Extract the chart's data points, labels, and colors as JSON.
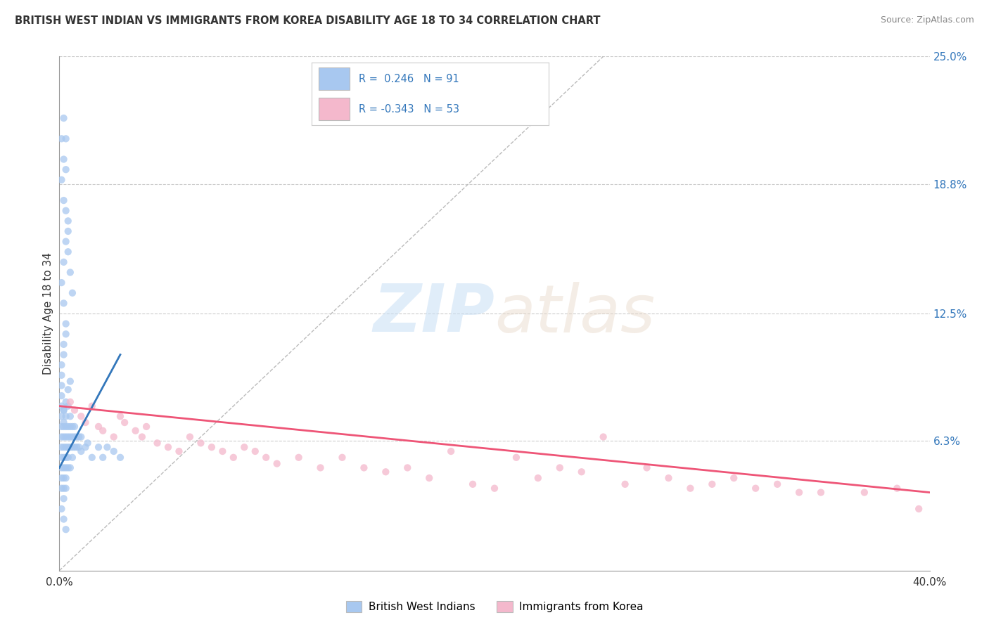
{
  "title": "BRITISH WEST INDIAN VS IMMIGRANTS FROM KOREA DISABILITY AGE 18 TO 34 CORRELATION CHART",
  "source": "Source: ZipAtlas.com",
  "ylabel": "Disability Age 18 to 34",
  "xlim": [
    0.0,
    0.4
  ],
  "ylim": [
    0.0,
    0.25
  ],
  "ytick_values": [
    0.063,
    0.125,
    0.188,
    0.25
  ],
  "ytick_labels": [
    "6.3%",
    "12.5%",
    "18.8%",
    "25.0%"
  ],
  "r_blue": 0.246,
  "n_blue": 91,
  "r_pink": -0.343,
  "n_pink": 53,
  "blue_color": "#a8c8f0",
  "pink_color": "#f4b8cc",
  "blue_line_color": "#3377bb",
  "pink_line_color": "#ee5577",
  "diagonal_color": "#bbbbbb",
  "watermark_zip": "ZIP",
  "watermark_atlas": "atlas",
  "legend_label_blue": "British West Indians",
  "legend_label_pink": "Immigrants from Korea",
  "blue_scatter_x": [
    0.001,
    0.001,
    0.001,
    0.001,
    0.001,
    0.001,
    0.001,
    0.001,
    0.001,
    0.001,
    0.002,
    0.002,
    0.002,
    0.002,
    0.002,
    0.002,
    0.002,
    0.002,
    0.002,
    0.002,
    0.003,
    0.003,
    0.003,
    0.003,
    0.003,
    0.003,
    0.003,
    0.003,
    0.004,
    0.004,
    0.004,
    0.004,
    0.004,
    0.004,
    0.005,
    0.005,
    0.005,
    0.005,
    0.005,
    0.006,
    0.006,
    0.006,
    0.006,
    0.007,
    0.007,
    0.007,
    0.008,
    0.008,
    0.009,
    0.009,
    0.01,
    0.01,
    0.012,
    0.013,
    0.015,
    0.018,
    0.02,
    0.022,
    0.025,
    0.028,
    0.001,
    0.002,
    0.003,
    0.001,
    0.002,
    0.003,
    0.001,
    0.002,
    0.001,
    0.002,
    0.003,
    0.004,
    0.005,
    0.006,
    0.004,
    0.003,
    0.002,
    0.001,
    0.003,
    0.002,
    0.004,
    0.005,
    0.003,
    0.002,
    0.001,
    0.004,
    0.003,
    0.002,
    0.001,
    0.003,
    0.002
  ],
  "blue_scatter_y": [
    0.055,
    0.06,
    0.065,
    0.07,
    0.075,
    0.08,
    0.085,
    0.05,
    0.045,
    0.04,
    0.055,
    0.06,
    0.065,
    0.07,
    0.05,
    0.045,
    0.04,
    0.035,
    0.072,
    0.078,
    0.055,
    0.06,
    0.065,
    0.07,
    0.05,
    0.045,
    0.04,
    0.075,
    0.06,
    0.065,
    0.055,
    0.07,
    0.05,
    0.08,
    0.06,
    0.065,
    0.07,
    0.05,
    0.075,
    0.06,
    0.065,
    0.055,
    0.07,
    0.06,
    0.065,
    0.07,
    0.065,
    0.06,
    0.065,
    0.06,
    0.065,
    0.058,
    0.06,
    0.062,
    0.055,
    0.06,
    0.055,
    0.06,
    0.058,
    0.055,
    0.1,
    0.11,
    0.12,
    0.095,
    0.105,
    0.115,
    0.09,
    0.13,
    0.14,
    0.15,
    0.16,
    0.155,
    0.145,
    0.135,
    0.17,
    0.175,
    0.18,
    0.19,
    0.195,
    0.2,
    0.088,
    0.092,
    0.082,
    0.078,
    0.21,
    0.165,
    0.02,
    0.025,
    0.03,
    0.21,
    0.22
  ],
  "pink_scatter_x": [
    0.005,
    0.007,
    0.01,
    0.012,
    0.015,
    0.018,
    0.02,
    0.025,
    0.028,
    0.03,
    0.035,
    0.038,
    0.04,
    0.045,
    0.05,
    0.055,
    0.06,
    0.065,
    0.07,
    0.075,
    0.08,
    0.085,
    0.09,
    0.095,
    0.1,
    0.11,
    0.12,
    0.13,
    0.14,
    0.15,
    0.16,
    0.17,
    0.18,
    0.19,
    0.2,
    0.21,
    0.22,
    0.23,
    0.24,
    0.25,
    0.26,
    0.27,
    0.28,
    0.29,
    0.3,
    0.31,
    0.32,
    0.33,
    0.34,
    0.35,
    0.37,
    0.385,
    0.395
  ],
  "pink_scatter_y": [
    0.082,
    0.078,
    0.075,
    0.072,
    0.08,
    0.07,
    0.068,
    0.065,
    0.075,
    0.072,
    0.068,
    0.065,
    0.07,
    0.062,
    0.06,
    0.058,
    0.065,
    0.062,
    0.06,
    0.058,
    0.055,
    0.06,
    0.058,
    0.055,
    0.052,
    0.055,
    0.05,
    0.055,
    0.05,
    0.048,
    0.05,
    0.045,
    0.058,
    0.042,
    0.04,
    0.055,
    0.045,
    0.05,
    0.048,
    0.065,
    0.042,
    0.05,
    0.045,
    0.04,
    0.042,
    0.045,
    0.04,
    0.042,
    0.038,
    0.038,
    0.038,
    0.04,
    0.03
  ],
  "blue_line_x": [
    0.0,
    0.028
  ],
  "blue_line_y": [
    0.05,
    0.105
  ],
  "pink_line_x": [
    0.0,
    0.4
  ],
  "pink_line_y": [
    0.08,
    0.038
  ]
}
